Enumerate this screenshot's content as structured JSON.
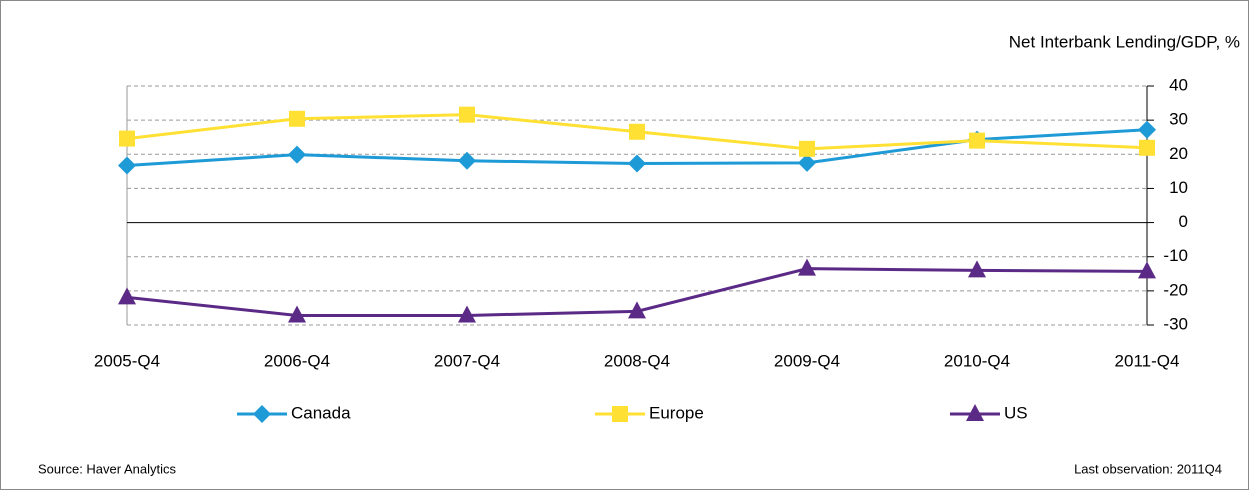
{
  "chart_data": {
    "type": "line",
    "title": "Net Interbank Lending/GDP, %",
    "categories": [
      "2005-Q4",
      "2006-Q4",
      "2007-Q4",
      "2008-Q4",
      "2009-Q4",
      "2010-Q4",
      "2011-Q4"
    ],
    "series": [
      {
        "name": "Canada",
        "color": "#1e9ad6",
        "marker": "diamond",
        "values": [
          16.7,
          19.9,
          18.1,
          17.3,
          17.5,
          24.3,
          27.2
        ]
      },
      {
        "name": "Europe",
        "color": "#ffe033",
        "marker": "square",
        "values": [
          24.6,
          30.4,
          31.6,
          26.6,
          21.6,
          24.0,
          21.9
        ]
      },
      {
        "name": "US",
        "color": "#5b2a86",
        "marker": "triangle",
        "values": [
          -21.9,
          -27.2,
          -27.2,
          -26.0,
          -13.5,
          -14.0,
          -14.3
        ]
      }
    ],
    "ylim": [
      -30,
      40
    ],
    "yticks": [
      -30,
      -20,
      -10,
      0,
      10,
      20,
      30,
      40
    ],
    "grid": true,
    "legend": "bottom",
    "source": "Source: Haver Analytics",
    "note": "Last observation: 2011Q4"
  }
}
